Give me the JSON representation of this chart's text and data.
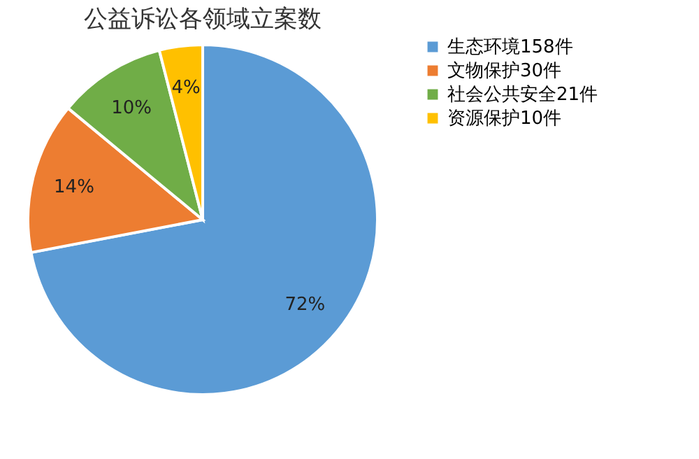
{
  "chart_data": {
    "type": "pie",
    "title": "公益诉讼各领域立案数",
    "categories": [
      "生态环境158件",
      "文物保护30件",
      "社会公共安全21件",
      "资源保护10件"
    ],
    "values": [
      72,
      14,
      10,
      4
    ],
    "colors": [
      "#5b9bd5",
      "#ed7d31",
      "#70ad47",
      "#ffc000"
    ],
    "value_labels": [
      "72%",
      "14%",
      "10%",
      "4%"
    ],
    "legend": "right"
  }
}
